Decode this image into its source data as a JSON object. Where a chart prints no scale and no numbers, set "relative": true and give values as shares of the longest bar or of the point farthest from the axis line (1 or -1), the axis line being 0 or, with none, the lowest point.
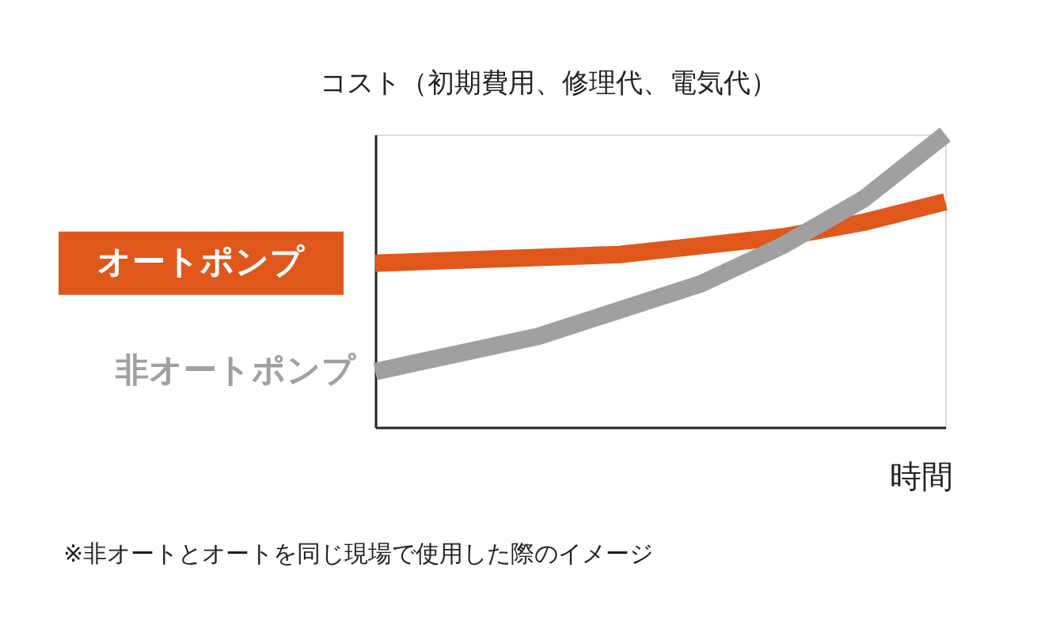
{
  "chart_data": {
    "type": "line",
    "relative": true,
    "ylabel": "コスト（初期費用、修理代、電気代）",
    "xlabel": "時間",
    "categories": [
      null,
      null,
      null,
      null,
      null,
      null,
      null,
      null
    ],
    "series": [
      {
        "name": "オートポンプ",
        "color": "#e0571c",
        "values": [
          0.56,
          0.57,
          0.58,
          0.59,
          0.62,
          0.65,
          0.7,
          0.77
        ]
      },
      {
        "name": "非オートポンプ",
        "color": "#a0a0a0",
        "values": [
          0.19,
          0.25,
          0.31,
          0.4,
          0.49,
          0.62,
          0.78,
          1.0
        ]
      }
    ],
    "annotations": [
      "※非オートとオートを同じ現場で使用した際のイメージ"
    ],
    "grid": false,
    "legend": false
  }
}
